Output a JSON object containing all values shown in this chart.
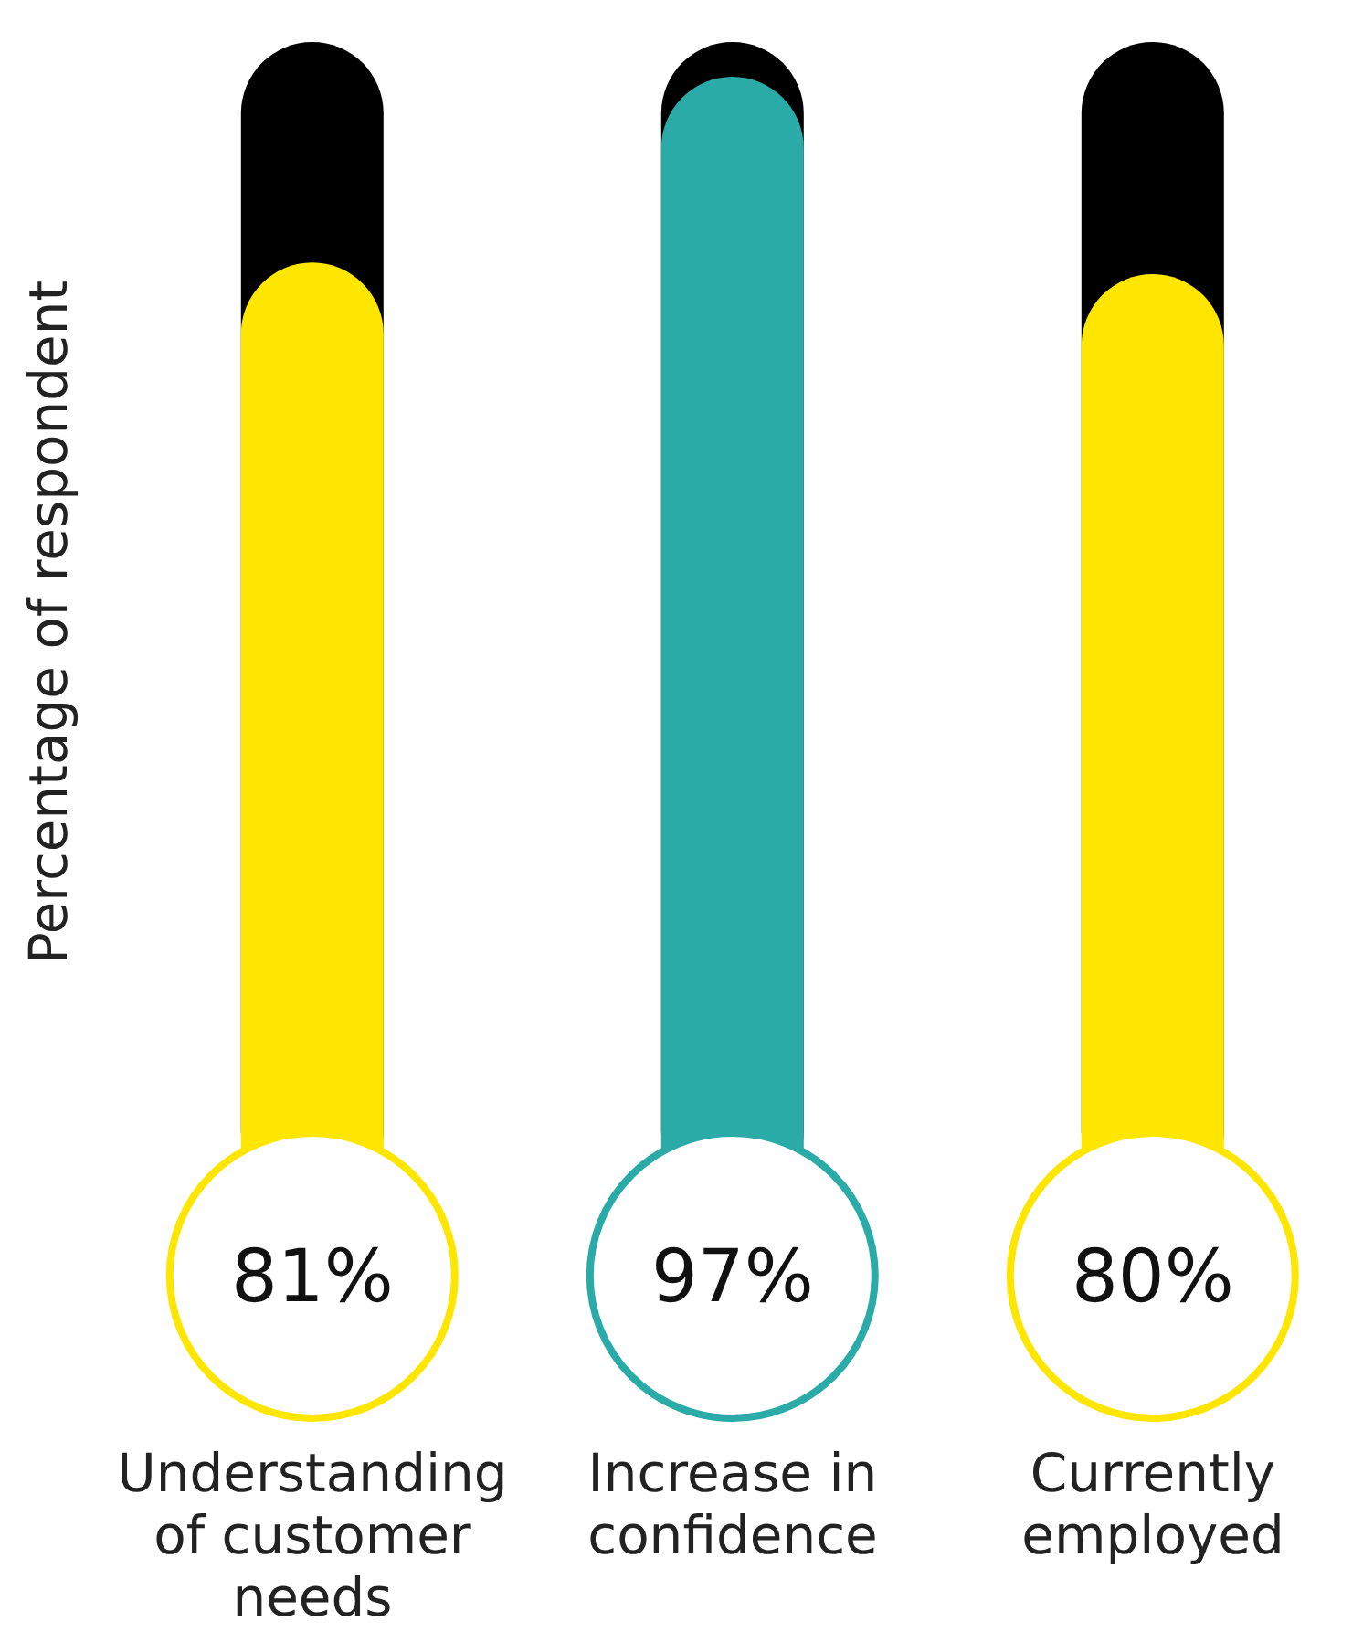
{
  "chart_data": {
    "type": "bar",
    "ylabel": "Percentage of respondent",
    "categories": [
      "Understanding of customer needs",
      "Increase in confidence",
      "Currently employed"
    ],
    "values": [
      81,
      97,
      80
    ],
    "colors": [
      "#ffe600",
      "#2aaba8",
      "#ffe600"
    ],
    "value_labels": [
      "81%",
      "97%",
      "80%"
    ],
    "ylim": [
      0,
      100
    ],
    "tick_labels": "x",
    "grid": false,
    "legend": false
  }
}
